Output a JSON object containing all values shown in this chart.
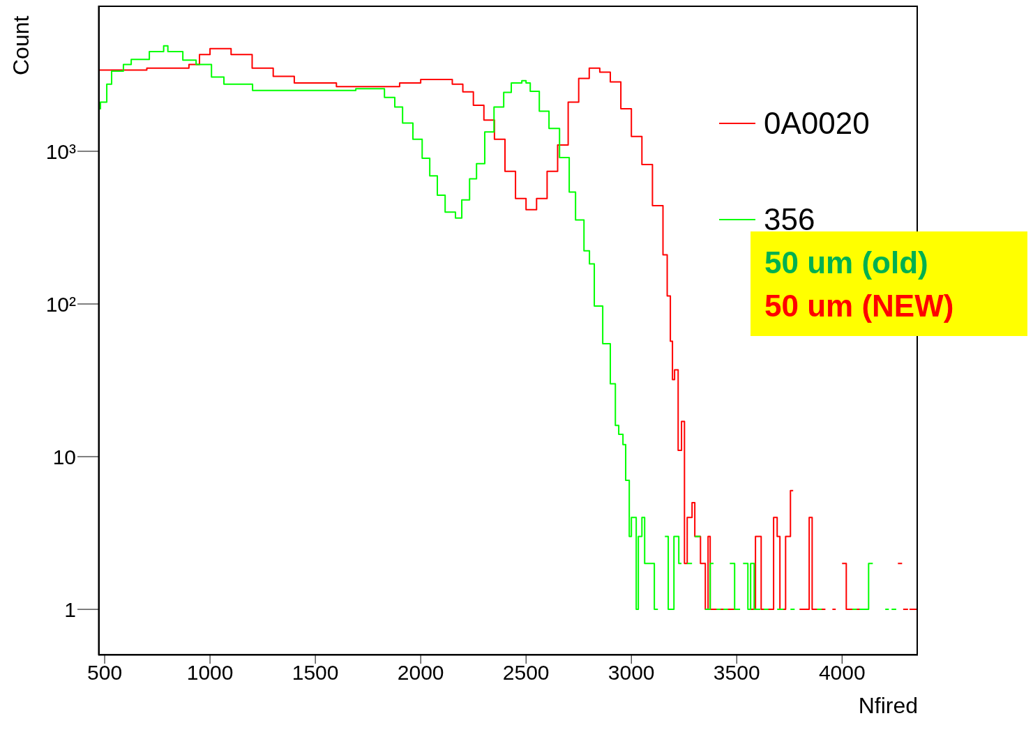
{
  "chart_data": {
    "type": "step",
    "xlabel": "Nfired",
    "ylabel": "Count",
    "log": true,
    "legend": "top right",
    "xlim": [
      470,
      4360
    ],
    "xticks": [
      500,
      1000,
      1500,
      2000,
      2500,
      3000,
      3500,
      4000
    ],
    "ylim": [
      0.5,
      9000
    ],
    "yticks": [
      1,
      10,
      {
        "value": 100,
        "label": "10²"
      },
      {
        "value": 1000,
        "label": "10³"
      }
    ],
    "annotations": [
      "50 um (old)",
      "50 um (NEW)"
    ],
    "series": [
      {
        "name": "0A0020",
        "color": "#ff0000",
        "x": [
          470,
          700,
          900,
          950,
          1000,
          1100,
          1200,
          1300,
          1400,
          1600,
          1800,
          1900,
          2000,
          2100,
          2150,
          2200,
          2250,
          2300,
          2350,
          2400,
          2450,
          2500,
          2550,
          2600,
          2650,
          2700,
          2750,
          2800,
          2850,
          2900,
          2950,
          3000,
          3050,
          3100,
          3150,
          3170,
          3185,
          3195,
          3205,
          3222,
          3238,
          3252,
          3265,
          3288,
          3301,
          3328,
          3351,
          3364,
          3374,
          3507,
          3563,
          3589,
          3616,
          3675,
          3692,
          3705,
          3732,
          3755,
          3768,
          3798,
          3844,
          3858,
          3921,
          3954,
          3970,
          4000,
          4020,
          4119,
          4265,
          4285,
          4290,
          4313,
          4320,
          4360
        ],
        "values": [
          3400,
          3500,
          3700,
          4300,
          4700,
          4300,
          3500,
          3100,
          2800,
          2650,
          2650,
          2800,
          2950,
          2950,
          2750,
          2450,
          2000,
          1600,
          1200,
          740,
          490,
          415,
          490,
          740,
          1100,
          2100,
          3000,
          3500,
          3300,
          2850,
          1900,
          1250,
          820,
          440,
          210,
          113,
          57,
          32,
          37,
          11,
          17,
          2,
          4,
          5,
          3,
          2,
          1,
          3,
          1,
          null,
          1,
          3,
          1,
          4,
          3,
          1,
          3,
          6,
          null,
          1,
          4,
          1,
          null,
          1,
          null,
          2,
          1,
          null,
          2,
          null,
          1,
          null,
          1,
          1
        ]
      },
      {
        "name": "356",
        "color": "#00ff00",
        "x": [
          470,
          480,
          510,
          533,
          589,
          626,
          712,
          780,
          800,
          871,
          934,
          1007,
          1066,
          1202,
          1692,
          1828,
          1877,
          1914,
          1963,
          2007,
          2043,
          2079,
          2116,
          2165,
          2195,
          2232,
          2265,
          2304,
          2348,
          2394,
          2430,
          2480,
          2500,
          2520,
          2563,
          2609,
          2659,
          2705,
          2735,
          2775,
          2801,
          2824,
          2864,
          2900,
          2924,
          2940,
          2960,
          2973,
          2990,
          3000,
          3023,
          3033,
          3050,
          3063,
          3109,
          3126,
          3159,
          3175,
          3202,
          3225,
          3238,
          3265,
          3288,
          3301,
          3328,
          3351,
          3374,
          3390,
          3404,
          3424,
          3437,
          3458,
          3467,
          3490,
          3516,
          3530,
          3553,
          3566,
          3583,
          3612,
          3629,
          3650,
          3692,
          3722,
          3755,
          3775,
          3881,
          3903,
          4049,
          4070,
          4083,
          4126,
          4146,
          4205,
          4222,
          4235,
          4257
        ],
        "values": [
          1900,
          2100,
          2750,
          3350,
          3700,
          4000,
          4500,
          4900,
          4500,
          3950,
          3700,
          3060,
          2750,
          2500,
          2570,
          2250,
          1950,
          1530,
          1200,
          900,
          690,
          515,
          400,
          365,
          480,
          660,
          830,
          1340,
          1950,
          2430,
          2800,
          2900,
          2800,
          2470,
          1830,
          1410,
          910,
          540,
          355,
          223,
          183,
          97,
          55,
          30,
          16,
          14,
          12,
          7,
          3,
          4,
          1,
          3,
          4,
          2,
          1,
          null,
          3,
          1,
          3,
          2,
          null,
          2,
          null,
          3,
          null,
          1,
          2,
          null,
          1,
          null,
          1,
          null,
          2,
          1,
          null,
          2,
          1,
          2,
          1,
          null,
          1,
          null,
          1,
          null,
          1,
          null,
          1,
          null,
          1,
          null,
          1,
          2,
          null,
          1,
          null,
          1,
          1
        ]
      }
    ]
  }
}
